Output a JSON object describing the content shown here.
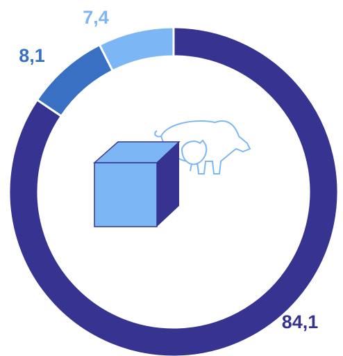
{
  "chart_data": {
    "type": "donut",
    "categories": [
      null,
      null,
      null
    ],
    "values": [
      84.1,
      8.1,
      7.4
    ],
    "value_labels": [
      "84,1",
      "8,1",
      "7,4"
    ],
    "colors": [
      "#363391",
      "#3a70c4",
      "#7db6f5"
    ]
  }
}
